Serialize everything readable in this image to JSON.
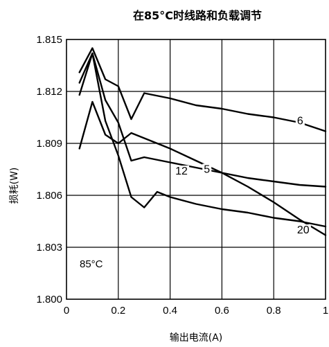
{
  "chart_data": {
    "type": "line",
    "title": "在85°C时线路和负载调节",
    "xlabel": "输出电流(A)",
    "ylabel": "损耗(W)",
    "xlim": [
      0,
      1
    ],
    "ylim": [
      1.8,
      1.815
    ],
    "xticks": [
      0,
      0.2,
      0.4,
      0.6,
      0.8,
      1
    ],
    "xtick_labels": [
      "0",
      "0.2",
      "0.4",
      "0.6",
      "0.8",
      "1"
    ],
    "yticks": [
      1.8,
      1.803,
      1.806,
      1.809,
      1.812,
      1.815
    ],
    "ytick_labels": [
      "1.800",
      "1.803",
      "1.806",
      "1.809",
      "1.812",
      "1.815"
    ],
    "grid": true,
    "annotation": "85°C",
    "series": [
      {
        "name": "6",
        "label_at": [
          0.89,
          1.8101
        ],
        "x": [
          0.05,
          0.1,
          0.15,
          0.2,
          0.25,
          0.3,
          0.4,
          0.5,
          0.6,
          0.7,
          0.8,
          0.9,
          1.0
        ],
        "y": [
          1.8131,
          1.8145,
          1.8127,
          1.8123,
          1.8104,
          1.8119,
          1.8116,
          1.8112,
          1.811,
          1.8107,
          1.8105,
          1.8102,
          1.8097
        ]
      },
      {
        "name": "5",
        "label_at": [
          0.53,
          1.8073
        ],
        "x": [
          0.05,
          0.1,
          0.15,
          0.2,
          0.25,
          0.3,
          0.4,
          0.5,
          0.6,
          0.7,
          0.8,
          0.9,
          1.0
        ],
        "y": [
          1.8087,
          1.8114,
          1.8095,
          1.809,
          1.8096,
          1.8093,
          1.8087,
          1.808,
          1.8073,
          1.8065,
          1.8056,
          1.8046,
          1.8037
        ]
      },
      {
        "name": "12",
        "label_at": [
          0.42,
          1.8072
        ],
        "x": [
          0.05,
          0.1,
          0.15,
          0.2,
          0.25,
          0.3,
          0.4,
          0.5,
          0.6,
          0.7,
          0.8,
          0.9,
          1.0
        ],
        "y": [
          1.8118,
          1.8142,
          1.8115,
          1.8102,
          1.808,
          1.8082,
          1.8079,
          1.8076,
          1.8073,
          1.807,
          1.8068,
          1.8066,
          1.8065
        ]
      },
      {
        "name": "20",
        "label_at": [
          0.89,
          1.8038
        ],
        "x": [
          0.05,
          0.1,
          0.15,
          0.2,
          0.25,
          0.3,
          0.35,
          0.4,
          0.5,
          0.6,
          0.7,
          0.8,
          0.9,
          1.0
        ],
        "y": [
          1.8125,
          1.8142,
          1.8103,
          1.8083,
          1.8059,
          1.8053,
          1.8062,
          1.8059,
          1.8055,
          1.8052,
          1.805,
          1.8047,
          1.8045,
          1.8042
        ]
      }
    ]
  }
}
